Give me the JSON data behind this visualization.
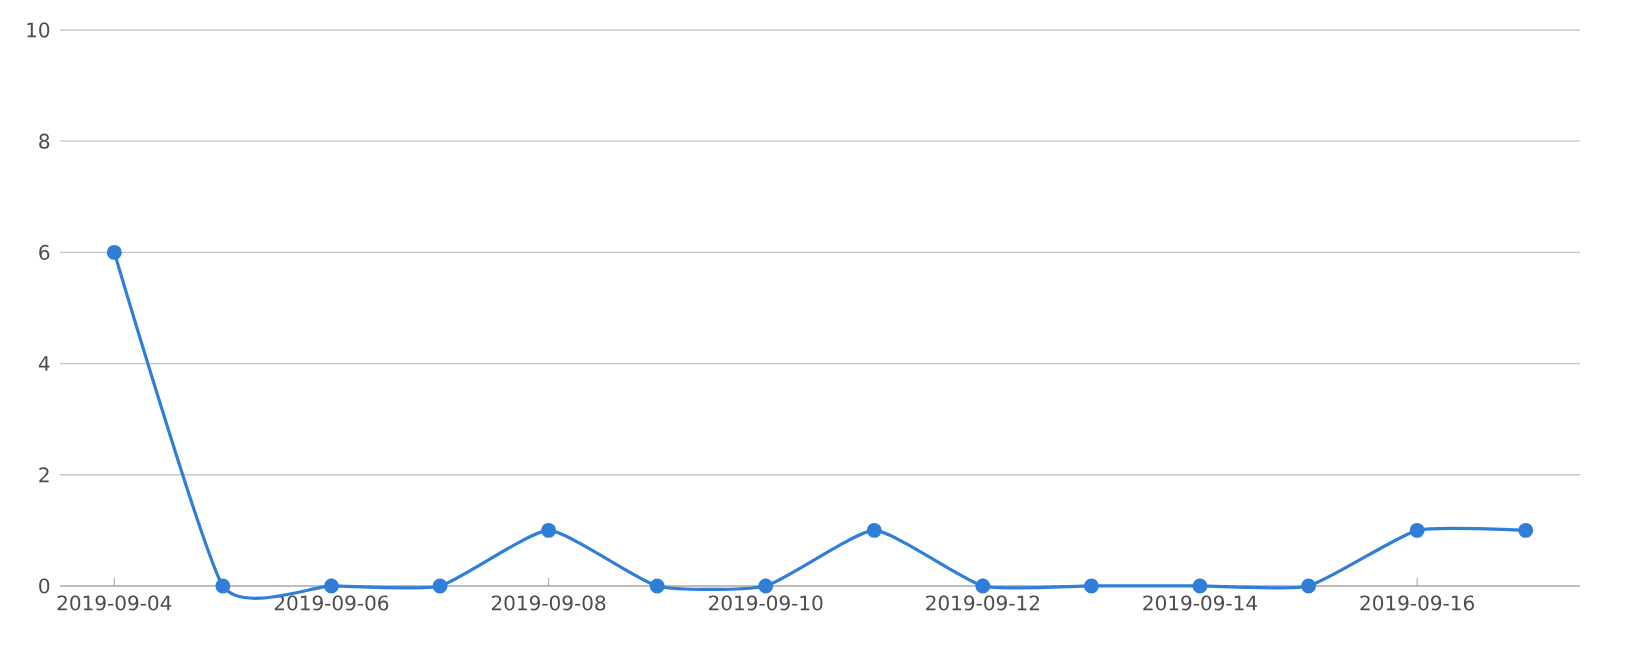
{
  "chart_data": {
    "type": "line",
    "categories": [
      "2019-09-04",
      null,
      "2019-09-06",
      null,
      "2019-09-08",
      null,
      "2019-09-10",
      null,
      "2019-09-12",
      null,
      "2019-09-14",
      null,
      "2019-09-16",
      null
    ],
    "values": [
      6,
      0,
      0,
      0,
      1,
      0,
      0,
      1,
      0,
      0,
      0,
      0,
      1,
      1
    ],
    "color": "#2f7ed8",
    "ylim": [
      0,
      10
    ],
    "yticks": [
      0,
      2,
      4,
      6,
      8,
      10
    ],
    "grid": "y",
    "marker": "circle"
  }
}
